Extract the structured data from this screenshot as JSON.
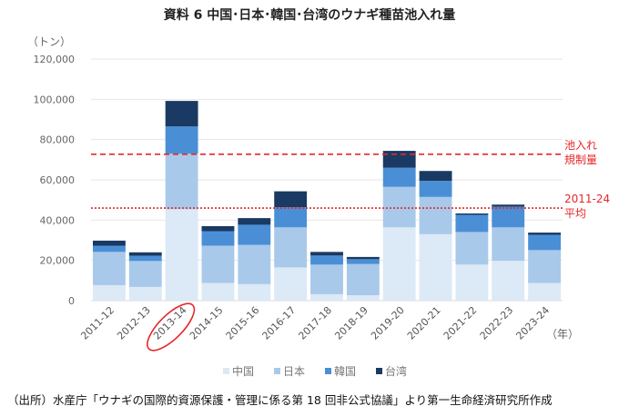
{
  "title": "資料 6  中国･日本･韓国･台湾のウナギ種苗池入れ量",
  "source": "（出所）水産庁「ウナギの国際的資源保護・管理に係る第 18 回非公式協議」より第一生命経済研究所作成",
  "chart_data": {
    "type": "bar",
    "stacked": true,
    "title": "資料 6  中国･日本･韓国･台湾のウナギ種苗池入れ量",
    "ylabel": "（トン）",
    "xlabel": "（年）",
    "ylim": [
      0,
      120000
    ],
    "yticks": [
      "0",
      "20,000",
      "40,000",
      "60,000",
      "80,000",
      "100,000",
      "120,000"
    ],
    "ytick_values": [
      0,
      20000,
      40000,
      60000,
      80000,
      100000,
      120000
    ],
    "grid": true,
    "legend_position": "bottom",
    "categories": [
      "2011-12",
      "2012-13",
      "2013-14",
      "2014-15",
      "2015-16",
      "2016-17",
      "2017-18",
      "2018-19",
      "2019-20",
      "2020-21",
      "2021-22",
      "2022-23",
      "2023-24"
    ],
    "highlighted_category": "2013-14",
    "series": [
      {
        "name": "中国",
        "color": "#dce9f6",
        "values": [
          7700,
          6800,
          45400,
          8800,
          8200,
          16500,
          3200,
          2700,
          36400,
          33000,
          17900,
          19800,
          8800
        ]
      },
      {
        "name": "日本",
        "color": "#a9c9ea",
        "values": [
          16500,
          12900,
          27600,
          18500,
          19500,
          19900,
          14700,
          15500,
          20100,
          18500,
          16200,
          16600,
          16300
        ]
      },
      {
        "name": "韓国",
        "color": "#4a8fd6",
        "values": [
          3100,
          2600,
          13500,
          7200,
          10000,
          10000,
          4500,
          2400,
          9500,
          8000,
          8500,
          10300,
          7600
        ]
      },
      {
        "name": "台湾",
        "color": "#1a3a63",
        "values": [
          2500,
          1700,
          12700,
          2500,
          3300,
          7900,
          1800,
          1100,
          8400,
          4900,
          700,
          1000,
          1100
        ]
      }
    ],
    "reference_lines": [
      {
        "label_line1": "池入れ",
        "label_line2": "規制量",
        "value": 72700,
        "style": "dashed",
        "color": "#e8262a"
      },
      {
        "label_line1": "2011-24",
        "label_line2": "平均",
        "value": 46000,
        "style": "dotted",
        "color": "#e8262a"
      }
    ]
  }
}
